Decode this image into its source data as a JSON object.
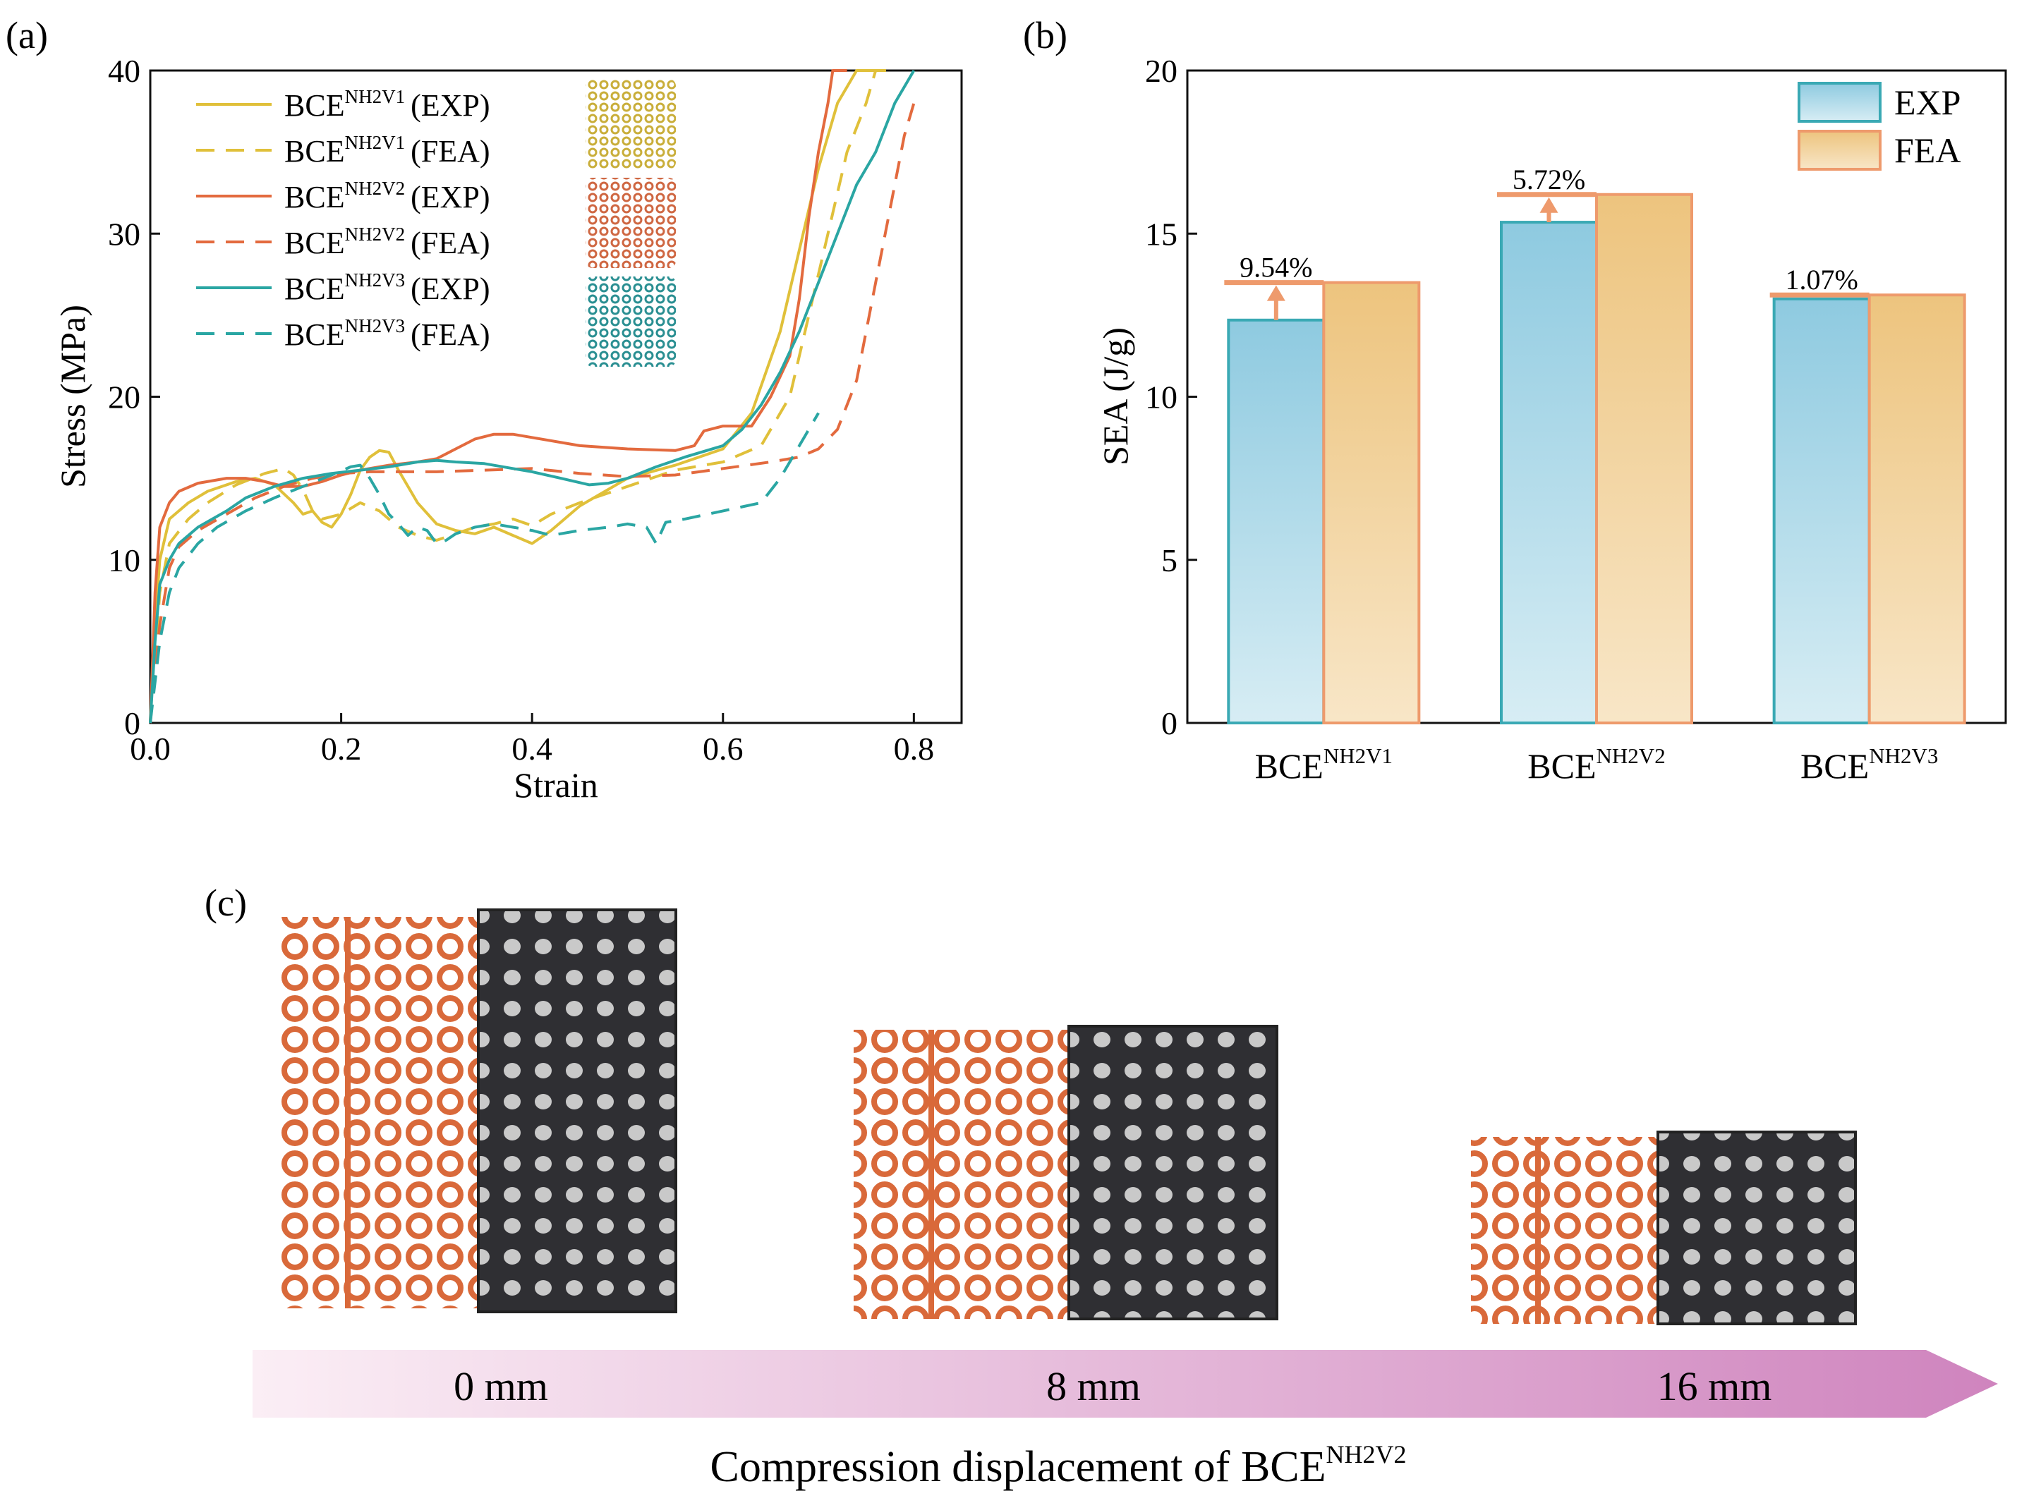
{
  "panels": {
    "a_label": "(a)",
    "b_label": "(b)",
    "c_label": "(c)"
  },
  "chart_data": [
    {
      "type": "line",
      "panel": "(a)",
      "xlabel": "Strain",
      "ylabel": "Stress (MPa)",
      "xlim": [
        0.0,
        0.85
      ],
      "ylim": [
        0,
        40
      ],
      "xticks": [
        "0.0",
        "0.2",
        "0.4",
        "0.6",
        "0.8"
      ],
      "yticks": [
        "0",
        "10",
        "20",
        "30",
        "40"
      ],
      "grid": false,
      "legend_position": "top-left",
      "series": [
        {
          "name": "BCE",
          "sup": "NH2V1",
          "suffix": "(EXP)",
          "color": "#e0c03a",
          "dash": false,
          "x": [
            0,
            0.005,
            0.01,
            0.02,
            0.04,
            0.06,
            0.09,
            0.11,
            0.13,
            0.15,
            0.16,
            0.17,
            0.18,
            0.19,
            0.2,
            0.21,
            0.22,
            0.23,
            0.24,
            0.25,
            0.26,
            0.28,
            0.3,
            0.32,
            0.34,
            0.36,
            0.38,
            0.4,
            0.42,
            0.45,
            0.5,
            0.55,
            0.6,
            0.63,
            0.66,
            0.68,
            0.7,
            0.72,
            0.74,
            0.76
          ],
          "y": [
            0,
            6,
            10,
            12.5,
            13.5,
            14.2,
            14.8,
            15,
            14.6,
            13.5,
            12.8,
            13,
            12.3,
            12,
            12.8,
            14,
            15.5,
            16.3,
            16.7,
            16.6,
            15.5,
            13.5,
            12.2,
            11.8,
            11.6,
            12,
            11.5,
            11,
            11.8,
            13.3,
            15,
            15.8,
            16.8,
            19,
            24,
            29,
            34,
            38,
            40,
            40
          ]
        },
        {
          "name": "BCE",
          "sup": "NH2V1",
          "suffix": "(FEA)",
          "color": "#e0c03a",
          "dash": true,
          "x": [
            0,
            0.01,
            0.02,
            0.04,
            0.06,
            0.09,
            0.12,
            0.14,
            0.15,
            0.16,
            0.17,
            0.18,
            0.2,
            0.22,
            0.24,
            0.26,
            0.28,
            0.3,
            0.32,
            0.34,
            0.36,
            0.38,
            0.4,
            0.42,
            0.45,
            0.5,
            0.55,
            0.6,
            0.64,
            0.67,
            0.69,
            0.71,
            0.73,
            0.75,
            0.76,
            0.78
          ],
          "y": [
            0,
            8,
            11,
            12.5,
            13.5,
            14.6,
            15.3,
            15.6,
            15.2,
            14.3,
            13,
            12.5,
            12.8,
            13.5,
            13,
            12,
            11.5,
            11.2,
            11.6,
            12,
            12.2,
            12.5,
            12.1,
            12.8,
            13.5,
            14.5,
            15.5,
            16,
            17,
            20,
            25,
            30,
            35,
            38,
            40,
            40
          ]
        },
        {
          "name": "BCE",
          "sup": "NH2V2",
          "suffix": "(EXP)",
          "color": "#e36a3e",
          "dash": false,
          "x": [
            0,
            0.005,
            0.01,
            0.02,
            0.03,
            0.05,
            0.08,
            0.1,
            0.12,
            0.14,
            0.16,
            0.18,
            0.2,
            0.22,
            0.25,
            0.28,
            0.3,
            0.32,
            0.34,
            0.36,
            0.38,
            0.4,
            0.45,
            0.5,
            0.55,
            0.57,
            0.58,
            0.6,
            0.63,
            0.65,
            0.67,
            0.68,
            0.69,
            0.7,
            0.71,
            0.715,
            0.72,
            0.73
          ],
          "y": [
            0,
            8,
            12,
            13.5,
            14.2,
            14.7,
            15,
            15,
            14.8,
            14.5,
            14.5,
            14.8,
            15.2,
            15.5,
            15.8,
            16,
            16.2,
            16.8,
            17.4,
            17.7,
            17.7,
            17.5,
            17,
            16.8,
            16.7,
            17,
            17.9,
            18.2,
            18.2,
            20,
            22.5,
            26,
            31,
            35,
            38,
            40,
            40,
            40
          ]
        },
        {
          "name": "BCE",
          "sup": "NH2V2",
          "suffix": "(FEA)",
          "color": "#e36a3e",
          "dash": true,
          "x": [
            0,
            0.01,
            0.02,
            0.03,
            0.05,
            0.08,
            0.11,
            0.14,
            0.17,
            0.2,
            0.23,
            0.26,
            0.3,
            0.35,
            0.4,
            0.45,
            0.5,
            0.55,
            0.6,
            0.65,
            0.68,
            0.7,
            0.72,
            0.74,
            0.75,
            0.76,
            0.77,
            0.78,
            0.79,
            0.8
          ],
          "y": [
            0,
            6,
            9.5,
            10.8,
            11.8,
            12.8,
            13.8,
            14.5,
            15,
            15.3,
            15.4,
            15.4,
            15.4,
            15.5,
            15.6,
            15.3,
            15.1,
            15.2,
            15.6,
            16,
            16.3,
            16.8,
            18,
            21,
            24,
            27,
            30,
            33,
            36,
            38
          ]
        },
        {
          "name": "BCE",
          "sup": "NH2V3",
          "suffix": "(EXP)",
          "color": "#2aa6a3",
          "dash": false,
          "x": [
            0,
            0.005,
            0.01,
            0.02,
            0.03,
            0.05,
            0.08,
            0.1,
            0.13,
            0.16,
            0.19,
            0.22,
            0.25,
            0.28,
            0.3,
            0.32,
            0.35,
            0.38,
            0.4,
            0.43,
            0.46,
            0.48,
            0.5,
            0.53,
            0.56,
            0.6,
            0.62,
            0.64,
            0.66,
            0.68,
            0.7,
            0.72,
            0.74,
            0.76,
            0.78,
            0.8
          ],
          "y": [
            0,
            5,
            8.5,
            10,
            11,
            12,
            13,
            13.8,
            14.5,
            15,
            15.3,
            15.5,
            15.7,
            16,
            16.1,
            16,
            15.9,
            15.6,
            15.4,
            15,
            14.6,
            14.7,
            15,
            15.7,
            16.3,
            17,
            18,
            19.5,
            21.5,
            24,
            27,
            30,
            33,
            35,
            38,
            40
          ]
        },
        {
          "name": "BCE",
          "sup": "NH2V3",
          "suffix": "(FEA)",
          "color": "#2aa6a3",
          "dash": true,
          "x": [
            0,
            0.01,
            0.02,
            0.03,
            0.05,
            0.07,
            0.1,
            0.13,
            0.16,
            0.19,
            0.21,
            0.22,
            0.23,
            0.24,
            0.25,
            0.26,
            0.27,
            0.28,
            0.29,
            0.3,
            0.31,
            0.32,
            0.34,
            0.36,
            0.38,
            0.4,
            0.42,
            0.45,
            0.48,
            0.5,
            0.52,
            0.53,
            0.54,
            0.56,
            0.6,
            0.64,
            0.66,
            0.68,
            0.7
          ],
          "y": [
            0,
            5,
            8,
            9.5,
            11,
            12,
            13,
            13.8,
            14.5,
            15.2,
            15.7,
            15.8,
            15,
            14,
            12.8,
            12.2,
            11.5,
            12,
            11.8,
            11,
            11.2,
            11.6,
            12,
            12.2,
            12,
            11.8,
            11.5,
            11.8,
            12,
            12.2,
            12,
            11,
            12.3,
            12.5,
            13,
            13.5,
            15,
            17,
            19
          ]
        }
      ]
    },
    {
      "type": "bar",
      "panel": "(b)",
      "ylabel": "SEA (J/g)",
      "ylim": [
        0,
        20
      ],
      "yticks": [
        "0",
        "5",
        "10",
        "15",
        "20"
      ],
      "grid": false,
      "legend_position": "top-right",
      "categories": [
        {
          "base": "BCE",
          "sup": "NH2V1"
        },
        {
          "base": "BCE",
          "sup": "NH2V2"
        },
        {
          "base": "BCE",
          "sup": "NH2V3"
        }
      ],
      "series": [
        {
          "name": "EXP",
          "values": [
            12.35,
            15.35,
            13.0
          ],
          "color": "#8ecae0",
          "stroke": "#3aa9b4"
        },
        {
          "name": "FEA",
          "values": [
            13.5,
            16.2,
            13.12
          ],
          "color": "#f0c98a",
          "stroke": "#ee9a6c"
        }
      ],
      "annotations": [
        "9.54%",
        "5.72%",
        "1.07%"
      ]
    }
  ],
  "panel_c": {
    "labels": [
      "0 mm",
      "8 mm",
      "16 mm"
    ],
    "arrow_colors": [
      "#fbeef5",
      "#cf84be"
    ],
    "caption_base": "Compression displacement of BCE",
    "caption_sup": "NH2V2"
  }
}
